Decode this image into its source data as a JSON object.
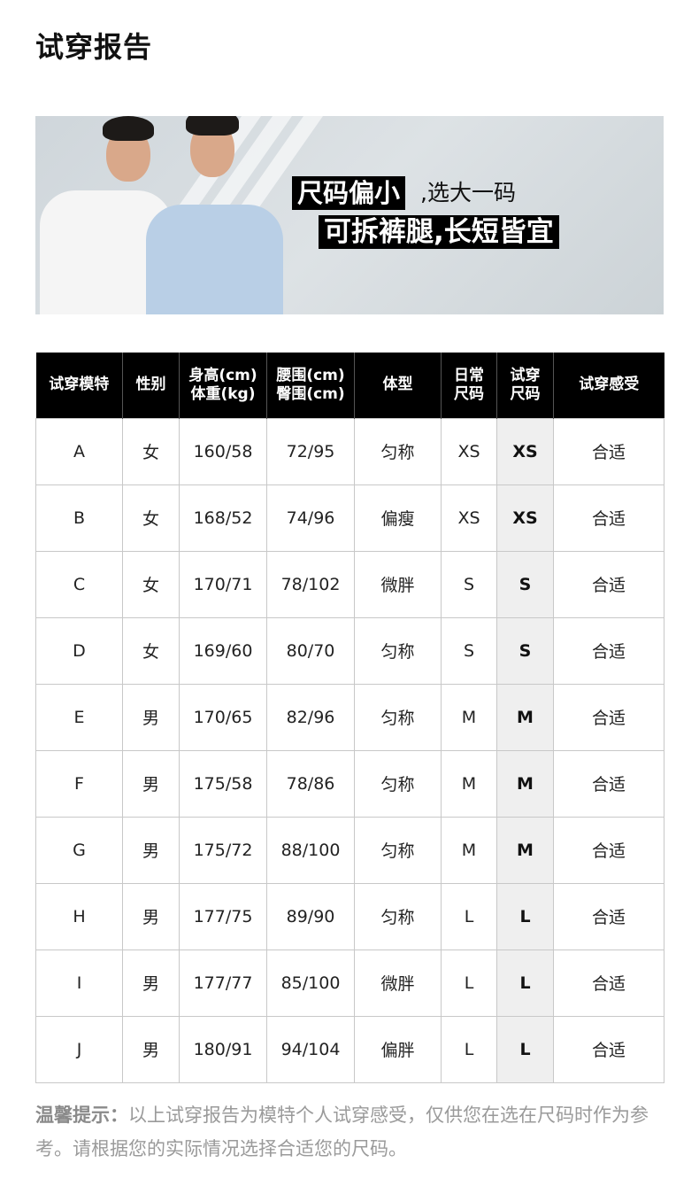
{
  "page_title": "试穿报告",
  "banner": {
    "tag1": "尺码偏小",
    "text1": ",选大一码",
    "tag2": "可拆裤腿,长短皆宜"
  },
  "table": {
    "headers": [
      [
        "试穿模特"
      ],
      [
        "性别"
      ],
      [
        "身高(cm)",
        "体重(kg)"
      ],
      [
        "腰围(cm)",
        "臀围(cm)"
      ],
      [
        "体型"
      ],
      [
        "日常",
        "尺码"
      ],
      [
        "试穿",
        "尺码"
      ],
      [
        "试穿感受"
      ]
    ],
    "rows": [
      [
        "A",
        "女",
        "160/58",
        "72/95",
        "匀称",
        "XS",
        "XS",
        "合适"
      ],
      [
        "B",
        "女",
        "168/52",
        "74/96",
        "偏瘦",
        "XS",
        "XS",
        "合适"
      ],
      [
        "C",
        "女",
        "170/71",
        "78/102",
        "微胖",
        "S",
        "S",
        "合适"
      ],
      [
        "D",
        "女",
        "169/60",
        "80/70",
        "匀称",
        "S",
        "S",
        "合适"
      ],
      [
        "E",
        "男",
        "170/65",
        "82/96",
        "匀称",
        "M",
        "M",
        "合适"
      ],
      [
        "F",
        "男",
        "175/58",
        "78/86",
        "匀称",
        "M",
        "M",
        "合适"
      ],
      [
        "G",
        "男",
        "175/72",
        "88/100",
        "匀称",
        "M",
        "M",
        "合适"
      ],
      [
        "H",
        "男",
        "177/75",
        "89/90",
        "匀称",
        "L",
        "L",
        "合适"
      ],
      [
        "I",
        "男",
        "177/77",
        "85/100",
        "微胖",
        "L",
        "L",
        "合适"
      ],
      [
        "J",
        "男",
        "180/91",
        "94/104",
        "偏胖",
        "L",
        "L",
        "合适"
      ]
    ]
  },
  "note": {
    "label": "温馨提示：",
    "text": "以上试穿报告为模特个人试穿感受，仅供您在选在尺码时作为参考。请根据您的实际情况选择合适您的尺码。"
  }
}
